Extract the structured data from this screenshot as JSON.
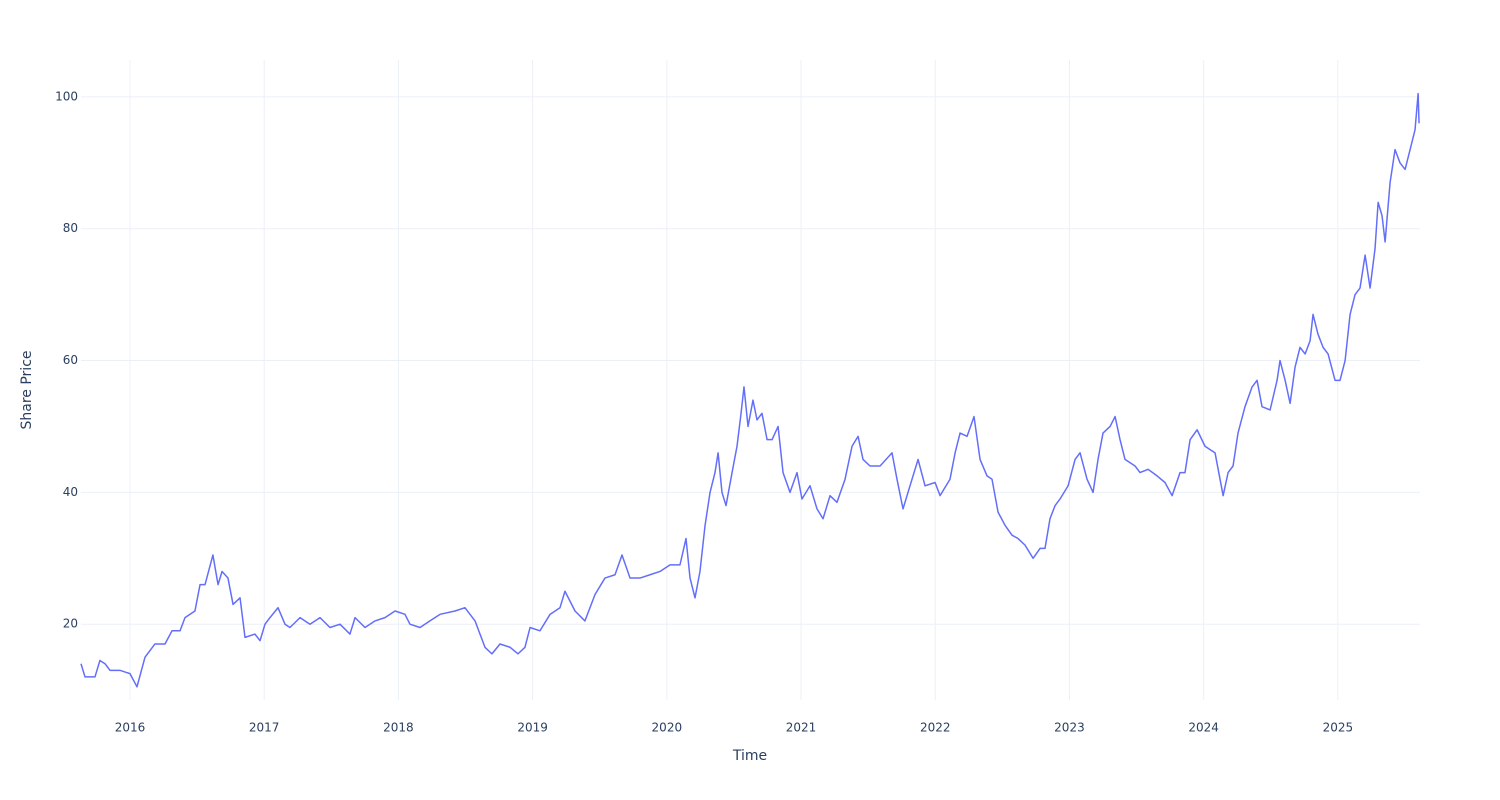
{
  "chart_data": {
    "type": "line",
    "x_label": "Time",
    "y_label": "Share Price",
    "color": "#636efa",
    "grid": true,
    "xlim": [
      2015.635,
      2025.612
    ],
    "ylim": [
      8.5,
      105.6
    ],
    "xticks": [
      2016,
      2017,
      2018,
      2019,
      2020,
      2021,
      2022,
      2023,
      2024,
      2025
    ],
    "yticks": [
      20,
      40,
      60,
      80,
      100
    ],
    "x": [
      2015.635,
      2015.665,
      2015.739,
      2015.776,
      2015.814,
      2015.851,
      2015.925,
      2016.0,
      2016.052,
      2016.112,
      2016.186,
      2016.261,
      2016.313,
      2016.373,
      2016.41,
      2016.484,
      2016.522,
      2016.559,
      2016.618,
      2016.656,
      2016.686,
      2016.73,
      2016.768,
      2016.82,
      2016.857,
      2016.931,
      2016.969,
      2017.006,
      2017.043,
      2017.103,
      2017.155,
      2017.192,
      2017.267,
      2017.341,
      2017.416,
      2017.49,
      2017.565,
      2017.639,
      2017.677,
      2017.751,
      2017.826,
      2017.9,
      2017.975,
      2018.049,
      2018.086,
      2018.161,
      2018.235,
      2018.31,
      2018.422,
      2018.496,
      2018.571,
      2018.645,
      2018.697,
      2018.757,
      2018.832,
      2018.891,
      2018.943,
      2018.981,
      2019.055,
      2019.13,
      2019.204,
      2019.241,
      2019.316,
      2019.39,
      2019.465,
      2019.539,
      2019.614,
      2019.666,
      2019.726,
      2019.8,
      2019.875,
      2019.949,
      2020.024,
      2020.098,
      2020.143,
      2020.173,
      2020.21,
      2020.247,
      2020.285,
      2020.322,
      2020.359,
      2020.382,
      2020.411,
      2020.441,
      2020.486,
      2020.523,
      2020.553,
      2020.575,
      2020.605,
      2020.642,
      2020.672,
      2020.709,
      2020.747,
      2020.784,
      2020.829,
      2020.866,
      2020.918,
      2020.97,
      2021.007,
      2021.067,
      2021.119,
      2021.164,
      2021.216,
      2021.268,
      2021.328,
      2021.38,
      2021.425,
      2021.462,
      2021.514,
      2021.589,
      2021.678,
      2021.715,
      2021.76,
      2021.812,
      2021.872,
      2021.924,
      2021.999,
      2022.036,
      2022.11,
      2022.148,
      2022.185,
      2022.237,
      2022.289,
      2022.334,
      2022.386,
      2022.423,
      2022.468,
      2022.52,
      2022.572,
      2022.617,
      2022.669,
      2022.729,
      2022.781,
      2022.818,
      2022.855,
      2022.893,
      2022.93,
      2022.99,
      2023.042,
      2023.079,
      2023.131,
      2023.176,
      2023.213,
      2023.25,
      2023.303,
      2023.34,
      2023.377,
      2023.414,
      2023.489,
      2023.526,
      2023.586,
      2023.653,
      2023.712,
      2023.765,
      2023.824,
      2023.861,
      2023.899,
      2023.951,
      2024.01,
      2024.085,
      2024.122,
      2024.145,
      2024.182,
      2024.219,
      2024.256,
      2024.308,
      2024.361,
      2024.398,
      2024.435,
      2024.495,
      2024.547,
      2024.569,
      2024.607,
      2024.644,
      2024.681,
      2024.718,
      2024.756,
      2024.793,
      2024.815,
      2024.852,
      2024.89,
      2024.927,
      2024.979,
      2025.016,
      2025.054,
      2025.091,
      2025.128,
      2025.165,
      2025.203,
      2025.24,
      2025.277,
      2025.3,
      2025.329,
      2025.352,
      2025.389,
      2025.426,
      2025.463,
      2025.501,
      2025.538,
      2025.575,
      2025.598,
      2025.605
    ],
    "values": [
      14,
      12,
      12,
      14.5,
      14,
      13,
      13,
      12.5,
      10.5,
      15,
      17,
      17,
      19,
      19,
      21,
      22,
      26,
      26,
      30.5,
      26,
      28,
      27,
      23,
      24,
      18,
      18.5,
      17.5,
      20,
      21,
      22.5,
      20,
      19.5,
      21,
      20,
      21,
      19.5,
      20,
      18.5,
      21,
      19.5,
      20.5,
      21,
      22,
      21.5,
      20,
      19.5,
      20.5,
      21.5,
      22,
      22.5,
      20.5,
      16.5,
      15.5,
      17,
      16.5,
      15.5,
      16.5,
      19.5,
      19,
      21.5,
      22.5,
      25,
      22,
      20.5,
      24.5,
      27,
      27.5,
      30.5,
      27,
      27,
      27.5,
      28,
      29,
      29,
      33,
      27,
      24,
      28,
      35,
      40,
      43,
      46,
      40,
      38,
      43,
      47,
      52,
      56,
      50,
      54,
      51,
      52,
      48,
      48,
      50,
      43,
      40,
      43,
      39,
      41,
      37.5,
      36,
      39.5,
      38.5,
      42,
      47,
      48.5,
      45,
      44,
      44,
      46,
      42,
      37.5,
      41,
      45,
      41,
      41.5,
      39.5,
      42,
      46,
      49,
      48.5,
      51.5,
      45,
      42.5,
      42,
      37,
      35,
      33.5,
      33,
      32,
      30,
      31.5,
      31.5,
      36,
      38,
      39,
      41,
      45,
      46,
      42,
      40,
      45,
      49,
      50,
      51.5,
      48,
      45,
      44,
      43,
      43.5,
      42.5,
      41.5,
      39.5,
      43,
      43,
      48,
      49.5,
      47,
      46,
      42,
      39.5,
      43,
      44,
      49,
      53,
      56,
      57,
      53,
      52.5,
      57,
      60,
      57,
      53.5,
      59,
      62,
      61,
      63,
      67,
      64,
      62,
      61,
      57,
      57,
      60,
      67,
      70,
      71,
      76,
      71,
      77,
      84,
      82,
      78,
      87,
      92,
      90,
      89,
      92,
      95,
      100.5,
      96
    ]
  }
}
